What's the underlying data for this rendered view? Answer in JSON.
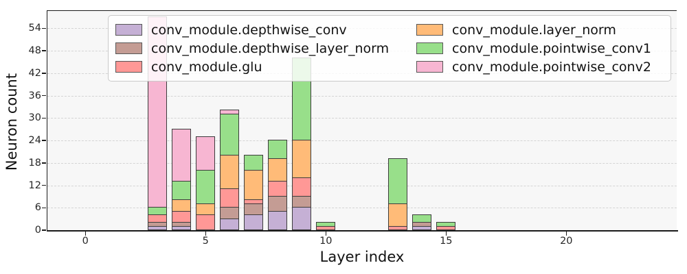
{
  "chart_data": {
    "type": "bar",
    "stacked": true,
    "title": "",
    "xlabel": "Layer index",
    "ylabel": "Neuron count",
    "x_ticks": [
      0,
      5,
      10,
      15,
      20
    ],
    "y_ticks": [
      0,
      6,
      12,
      18,
      24,
      30,
      36,
      42,
      48,
      54
    ],
    "xlim": [
      -1.6,
      24.6
    ],
    "ylim": [
      0,
      58.7
    ],
    "grid": "horizontal dashed",
    "legend_position": "upper center, 2 columns",
    "bar_width_units": 0.8,
    "categories": [
      3,
      4,
      5,
      6,
      7,
      8,
      9,
      10,
      13,
      14,
      15
    ],
    "series": [
      {
        "name": "conv_module.depthwise_conv",
        "color": "#c5b0d5",
        "values": [
          1,
          1,
          0,
          3,
          4,
          5,
          6,
          0,
          0,
          1,
          0
        ]
      },
      {
        "name": "conv_module.depthwise_layer_norm",
        "color": "#c49c94",
        "values": [
          1,
          1,
          0,
          3,
          3,
          4,
          3,
          0,
          0,
          1,
          0
        ]
      },
      {
        "name": "conv_module.glu",
        "color": "#ff9896",
        "values": [
          2,
          3,
          4,
          5,
          1,
          4,
          5,
          1,
          1,
          0,
          1
        ]
      },
      {
        "name": "conv_module.layer_norm",
        "color": "#ffbb78",
        "values": [
          0,
          3,
          3,
          9,
          8,
          6,
          10,
          0,
          6,
          0,
          0
        ]
      },
      {
        "name": "conv_module.pointwise_conv1",
        "color": "#98df8a",
        "values": [
          2,
          5,
          9,
          11,
          4,
          5,
          22,
          1,
          12,
          2,
          1
        ]
      },
      {
        "name": "conv_module.pointwise_conv2",
        "color": "#f7b6d2",
        "values": [
          51,
          14,
          9,
          1,
          0,
          0,
          0,
          0,
          0,
          0,
          0
        ]
      }
    ],
    "totals_by_category": [
      57,
      27,
      25,
      32,
      20,
      24,
      46,
      2,
      19,
      4,
      2
    ]
  }
}
